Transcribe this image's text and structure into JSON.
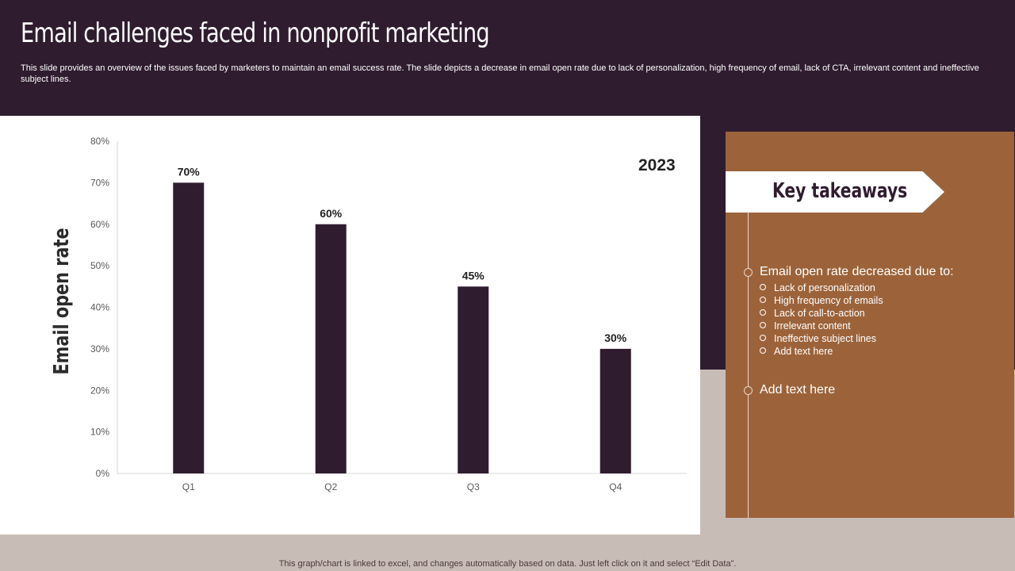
{
  "slide": {
    "title": "Email challenges faced in nonprofit marketing",
    "subtitle": "This slide provides an overview of the issues faced by marketers to maintain an email success rate. The slide depicts a decrease in email open rate due to lack of personalization, high frequency of email, lack of CTA,  irrelevant content and ineffective subject lines.",
    "footnote": "This graph/chart is linked to excel,  and changes automatically based on data. Just left click on it and select “Edit Data”."
  },
  "colors": {
    "dark": "#2f1c2f",
    "brown": "#9c633a",
    "taupe": "#c8bcb6"
  },
  "chart_data": {
    "type": "bar",
    "title": "2023",
    "xlabel": "",
    "ylabel": "Email open rate",
    "categories": [
      "Q1",
      "Q2",
      "Q3",
      "Q4"
    ],
    "values": [
      70,
      60,
      45,
      30
    ],
    "data_labels": [
      "70%",
      "60%",
      "45%",
      "30%"
    ],
    "ylim": [
      0,
      80
    ],
    "yticks": [
      0,
      10,
      20,
      30,
      40,
      50,
      60,
      70,
      80
    ],
    "ytick_labels": [
      "0%",
      "10%",
      "20%",
      "30%",
      "40%",
      "50%",
      "60%",
      "70%",
      "80%"
    ],
    "grid": false,
    "bar_color": "#2f1c2f"
  },
  "takeaways": {
    "heading": "Key takeaways",
    "point1": "Email open rate decreased due to:",
    "subitems": [
      "Lack of personalization",
      "High frequency  of emails",
      "Lack of call-to-action",
      "Irrelevant  content",
      "Ineffective  subject lines",
      "Add text here"
    ],
    "point2": "Add text here"
  }
}
